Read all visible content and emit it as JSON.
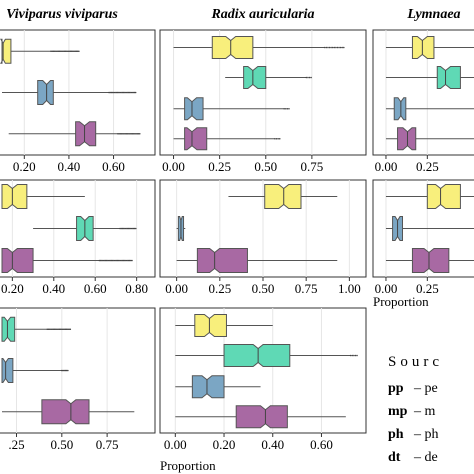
{
  "chart_data": {
    "type": "boxplot",
    "colors": {
      "pp": "#f8ef7c",
      "mp": "#5fd9b5",
      "ph": "#7ba6c4",
      "dt": "#a869a3"
    },
    "columns": [
      "Viviparus viviparus",
      "Radix auricularia",
      "Lymnaea"
    ],
    "x_axis_label": "Proportion",
    "panels": [
      {
        "col": 0,
        "row": 0,
        "ticks": [
          "0.20",
          "0.40",
          "0.60"
        ],
        "xlim": [
          0.1,
          0.75
        ],
        "boxes": [
          {
            "series": "pp",
            "q1": 0.1,
            "median": 0.105,
            "q3": 0.14,
            "whisker_lo": 0.1,
            "whisker_hi": 0.32,
            "outlier_to": 0.45
          },
          {
            "series": "ph",
            "q1": 0.26,
            "median": 0.3,
            "q3": 0.33,
            "whisker_lo": 0.1,
            "whisker_hi": 0.58,
            "outlier_to": 0.7
          },
          {
            "series": "dt",
            "q1": 0.43,
            "median": 0.47,
            "q3": 0.52,
            "whisker_lo": 0.13,
            "whisker_hi": 0.62,
            "outlier_to": 0.72
          }
        ]
      },
      {
        "col": 1,
        "row": 0,
        "ticks": [
          "0.00",
          "0.25",
          "0.50",
          "0.75"
        ],
        "xlim": [
          -0.03,
          1.0
        ],
        "boxes": [
          {
            "series": "pp",
            "q1": 0.21,
            "median": 0.31,
            "q3": 0.43,
            "whisker_lo": 0.0,
            "whisker_hi": 0.82,
            "outlier_to": 0.93
          },
          {
            "series": "mp",
            "q1": 0.38,
            "median": 0.43,
            "q3": 0.5,
            "whisker_lo": 0.28,
            "whisker_hi": 0.72,
            "outlier_to": 0.75
          },
          {
            "series": "ph",
            "q1": 0.06,
            "median": 0.1,
            "q3": 0.16,
            "whisker_lo": 0.0,
            "whisker_hi": 0.6,
            "outlier_to": 0.63
          },
          {
            "series": "dt",
            "q1": 0.06,
            "median": 0.1,
            "q3": 0.18,
            "whisker_lo": 0.0,
            "whisker_hi": 0.55,
            "outlier_to": 0.58
          }
        ]
      },
      {
        "col": 2,
        "row": 0,
        "ticks": [
          "0.00",
          "0.25"
        ],
        "xlim": [
          -0.03,
          0.52
        ],
        "boxes": [
          {
            "series": "pp",
            "q1": 0.16,
            "median": 0.22,
            "q3": 0.29,
            "whisker_lo": 0.0,
            "whisker_hi": 0.55
          },
          {
            "series": "mp",
            "q1": 0.31,
            "median": 0.36,
            "q3": 0.45,
            "whisker_lo": 0.0,
            "whisker_hi": 0.55
          },
          {
            "series": "ph",
            "q1": 0.05,
            "median": 0.09,
            "q3": 0.12,
            "whisker_lo": 0.0,
            "whisker_hi": 0.55
          },
          {
            "series": "dt",
            "q1": 0.07,
            "median": 0.13,
            "q3": 0.18,
            "whisker_lo": 0.0,
            "whisker_hi": 0.55
          }
        ]
      },
      {
        "col": 0,
        "row": 1,
        "ticks": [
          "0.20",
          "0.40",
          "0.60",
          "0.80"
        ],
        "xlim": [
          0.15,
          0.85
        ],
        "boxes": [
          {
            "series": "pp",
            "q1": 0.15,
            "median": 0.2,
            "q3": 0.27,
            "whisker_lo": 0.15,
            "whisker_hi": 0.55
          },
          {
            "series": "mp",
            "q1": 0.51,
            "median": 0.55,
            "q3": 0.59,
            "whisker_lo": 0.3,
            "whisker_hi": 0.72,
            "outlier_to": 0.8
          },
          {
            "series": "dt",
            "q1": 0.15,
            "median": 0.2,
            "q3": 0.3,
            "whisker_lo": 0.15,
            "whisker_hi": 0.62,
            "outlier_to": 0.78
          }
        ]
      },
      {
        "col": 1,
        "row": 1,
        "ticks": [
          "0.00",
          "0.25",
          "0.50",
          "0.75",
          "1.00"
        ],
        "xlim": [
          -0.05,
          1.05
        ],
        "boxes": [
          {
            "series": "pp",
            "q1": 0.51,
            "median": 0.62,
            "q3": 0.72,
            "whisker_lo": 0.3,
            "whisker_hi": 0.93
          },
          {
            "series": "ph",
            "q1": 0.01,
            "median": 0.025,
            "q3": 0.04,
            "whisker_lo": 0.0,
            "whisker_hi": 0.05
          },
          {
            "series": "dt",
            "q1": 0.12,
            "median": 0.22,
            "q3": 0.41,
            "whisker_lo": 0.0,
            "whisker_hi": 0.93
          }
        ]
      },
      {
        "col": 2,
        "row": 1,
        "ticks": [
          "0.00",
          "0.25"
        ],
        "xlim": [
          -0.03,
          0.52
        ],
        "boxes": [
          {
            "series": "pp",
            "q1": 0.25,
            "median": 0.33,
            "q3": 0.45,
            "whisker_lo": 0.0,
            "whisker_hi": 0.55
          },
          {
            "series": "ph",
            "q1": 0.04,
            "median": 0.07,
            "q3": 0.1,
            "whisker_lo": 0.0,
            "whisker_hi": 0.55
          },
          {
            "series": "dt",
            "q1": 0.16,
            "median": 0.26,
            "q3": 0.38,
            "whisker_lo": 0.0,
            "whisker_hi": 0.55
          }
        ]
      },
      {
        "col": 0,
        "row": 2,
        "ticks": [
          ".25",
          "0.50",
          "0.75"
        ],
        "xlim": [
          0.17,
          0.97
        ],
        "boxes": [
          {
            "series": "mp",
            "q1": 0.17,
            "median": 0.2,
            "q3": 0.24,
            "whisker_lo": 0.17,
            "whisker_hi": 0.42,
            "outlier_to": 0.55
          },
          {
            "series": "ph",
            "q1": 0.17,
            "median": 0.19,
            "q3": 0.23,
            "whisker_lo": 0.17,
            "whisker_hi": 0.5,
            "outlier_to": 0.54
          },
          {
            "series": "dt",
            "q1": 0.39,
            "median": 0.55,
            "q3": 0.65,
            "whisker_lo": 0.17,
            "whisker_hi": 0.9
          }
        ]
      },
      {
        "col": 1,
        "row": 2,
        "ticks": [
          "0.00",
          "0.20",
          "0.40",
          "0.60"
        ],
        "xlim": [
          -0.03,
          0.75
        ],
        "boxes": [
          {
            "series": "pp",
            "q1": 0.08,
            "median": 0.14,
            "q3": 0.21,
            "whisker_lo": 0.0,
            "whisker_hi": 0.4
          },
          {
            "series": "mp",
            "q1": 0.2,
            "median": 0.34,
            "q3": 0.47,
            "whisker_lo": 0.0,
            "whisker_hi": 0.72,
            "outlier_to": 0.75
          },
          {
            "series": "ph",
            "q1": 0.07,
            "median": 0.13,
            "q3": 0.2,
            "whisker_lo": 0.0,
            "whisker_hi": 0.35
          },
          {
            "series": "dt",
            "q1": 0.25,
            "median": 0.37,
            "q3": 0.46,
            "whisker_lo": 0.0,
            "whisker_hi": 0.7
          }
        ]
      }
    ],
    "legend": {
      "title": "Sourc",
      "entries": [
        {
          "key": "pp",
          "label": "– pe"
        },
        {
          "key": "mp",
          "label": "– m"
        },
        {
          "key": "ph",
          "label": "– ph"
        },
        {
          "key": "dt",
          "label": "– de"
        }
      ]
    }
  }
}
